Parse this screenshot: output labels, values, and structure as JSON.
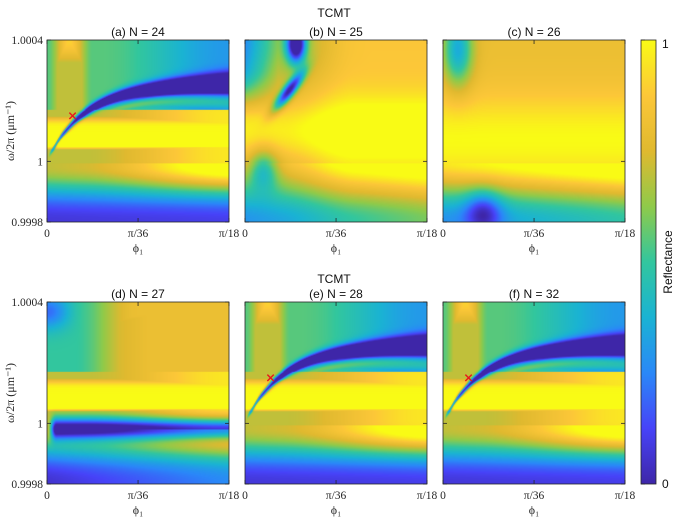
{
  "chart_data": {
    "type": "heatmap",
    "row_titles": [
      "TCMT",
      "TCMT"
    ],
    "panels": [
      {
        "title": "(a) N = 24",
        "pattern": "cross",
        "marker": [
          0.0245,
          1.00015
        ]
      },
      {
        "title": "(b) N = 25",
        "pattern": "b"
      },
      {
        "title": "(c) N = 26",
        "pattern": "c"
      },
      {
        "title": "(d) N = 27",
        "pattern": "d"
      },
      {
        "title": "(e) N = 28",
        "pattern": "cross",
        "marker": [
          0.0245,
          1.00015
        ]
      },
      {
        "title": "(f) N = 32",
        "pattern": "cross",
        "marker": [
          0.0245,
          1.00015
        ]
      }
    ],
    "xlabel": "ϕ₁",
    "ylabel": "ω/2π (μm⁻¹)",
    "xlim": [
      0,
      0.1745
    ],
    "ylim": [
      0.9998,
      1.0004
    ],
    "xticks": [
      {
        "value": 0,
        "label": "0"
      },
      {
        "value": 0.0873,
        "label": "π/36"
      },
      {
        "value": 0.1745,
        "label": "π/18"
      }
    ],
    "yticks": [
      {
        "value": 0.9998,
        "label": "0.9998"
      },
      {
        "value": 1.0,
        "label": "1"
      },
      {
        "value": 1.0004,
        "label": "1.0004"
      }
    ],
    "colorbar": {
      "label": "Reflectance",
      "min": 0,
      "max": 1,
      "ticks": [
        "0",
        "1"
      ]
    },
    "colormap": [
      "#3e26a8",
      "#4743f8",
      "#2a88f8",
      "#1ab3d3",
      "#32c69e",
      "#8fca4a",
      "#e0b92f",
      "#fcc738",
      "#f9fb15"
    ],
    "marker_color": "#e8161b"
  }
}
